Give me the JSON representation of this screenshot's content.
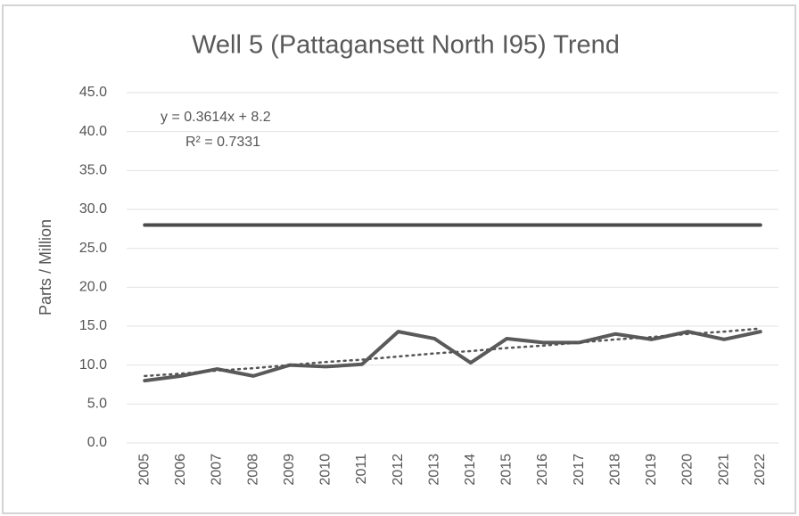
{
  "chart_data": {
    "type": "line",
    "title": "Well 5 (Pattagansett North I95) Trend",
    "y_label": "Parts / Million",
    "annotations": [
      "y = 0.3614x + 8.2",
      "R² = 0.7331"
    ],
    "categories": [
      "2005",
      "2006",
      "2007",
      "2008",
      "2009",
      "2010",
      "2011",
      "2012",
      "2013",
      "2014",
      "2015",
      "2016",
      "2017",
      "2018",
      "2019",
      "2020",
      "2021",
      "2022"
    ],
    "series": [
      {
        "color": "#5a5a5a",
        "style": "solid",
        "values": [
          8.0,
          8.6,
          9.5,
          8.6,
          10.0,
          9.8,
          10.1,
          14.3,
          13.4,
          10.3,
          13.4,
          12.9,
          12.9,
          14.0,
          13.3,
          14.3,
          13.3,
          14.3
        ]
      },
      {
        "color": "#4a4a4a",
        "style": "solid",
        "values": [
          28,
          28,
          28,
          28,
          28,
          28,
          28,
          28,
          28,
          28,
          28,
          28,
          28,
          28,
          28,
          28,
          28,
          28
        ]
      },
      {
        "color": "#555555",
        "style": "dotted",
        "values": [
          8.6,
          8.9,
          9.3,
          9.6,
          10.0,
          10.4,
          10.7,
          11.1,
          11.5,
          11.8,
          12.2,
          12.5,
          12.9,
          13.3,
          13.6,
          14.0,
          14.3,
          14.7
        ]
      }
    ],
    "ylim": [
      0,
      45
    ],
    "yticks": [
      {
        "value": 0,
        "label": "0.0"
      },
      {
        "value": 5,
        "label": "5.0"
      },
      {
        "value": 10,
        "label": "10.0"
      },
      {
        "value": 15,
        "label": "15.0"
      },
      {
        "value": 20,
        "label": "20.0"
      },
      {
        "value": 25,
        "label": "25.0"
      },
      {
        "value": 30,
        "label": "30.0"
      },
      {
        "value": 35,
        "label": "35.0"
      },
      {
        "value": 40,
        "label": "40.0"
      },
      {
        "value": 45,
        "label": "45.0"
      }
    ],
    "grid": true
  }
}
